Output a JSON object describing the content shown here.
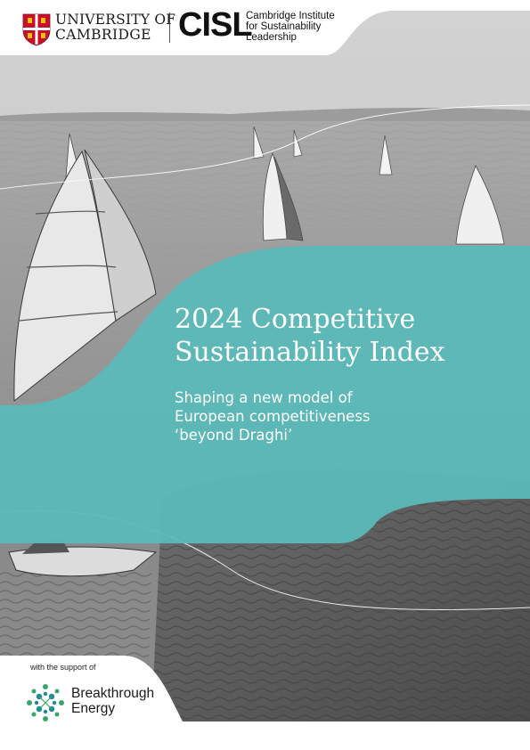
{
  "header": {
    "university": {
      "line1": "UNIVERSITY OF",
      "line2": "CAMBRIDGE"
    },
    "cisl": {
      "logo_text": "CISL",
      "name_lines": [
        "Cambridge Institute",
        "for Sustainability",
        "Leadership"
      ]
    }
  },
  "cover": {
    "title_lines": [
      "2024 Competitive",
      "Sustainability Index"
    ],
    "subtitle_lines": [
      "Shaping a new model of",
      "European competitiveness",
      "‘beyond Draghi’"
    ]
  },
  "footer": {
    "support_label": "with the support of",
    "partner_lines": [
      "Breakthrough",
      "Energy"
    ]
  },
  "colors": {
    "teal_panel": "#5ab9b8",
    "partner_green": "#3aa56a",
    "partner_teal": "#1e8a9a",
    "crest_red": "#c8102e"
  },
  "icons": {
    "university_logo": "cambridge-crest-icon",
    "partner_logo": "breakthrough-energy-icon"
  }
}
